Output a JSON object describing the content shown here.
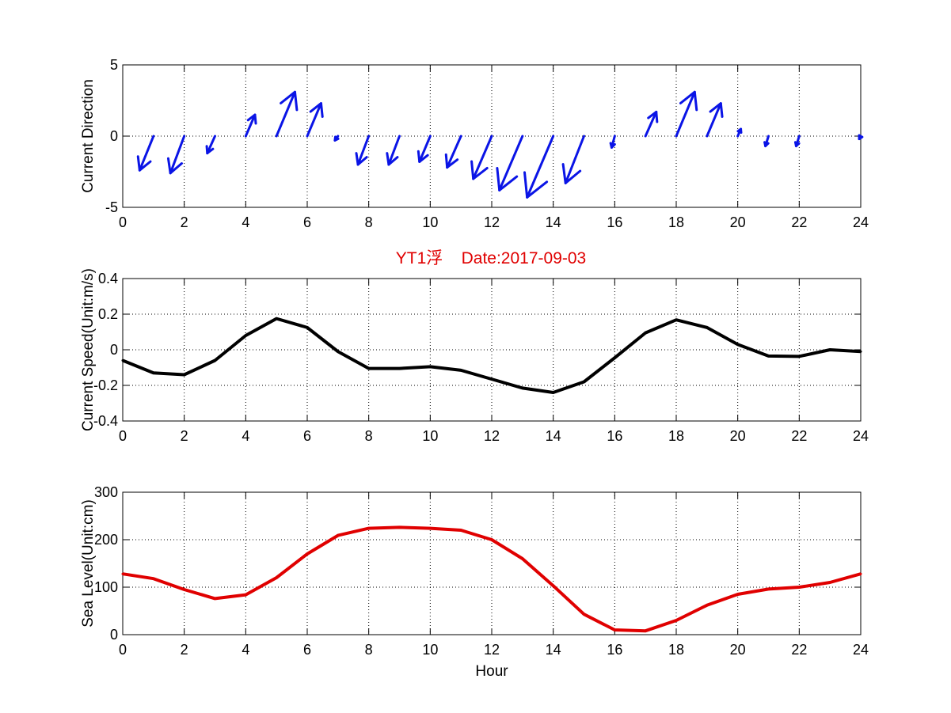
{
  "figure": {
    "title": "YT1浮    Date:2017-09-03",
    "title_color": "#e00000"
  },
  "chart_data": [
    {
      "type": "quiver",
      "ylabel": "Current Direction",
      "xlabel": "",
      "xlim": [
        0,
        24
      ],
      "ylim": [
        -5,
        5
      ],
      "xticks": [
        "0",
        "2",
        "4",
        "6",
        "8",
        "10",
        "12",
        "14",
        "16",
        "18",
        "20",
        "22",
        "24"
      ],
      "yticks": [
        "-5",
        "0",
        "5"
      ],
      "color": "#0a14e6",
      "grid": true,
      "x": [
        1,
        2,
        3,
        4,
        5,
        6,
        7,
        8,
        9,
        10,
        11,
        12,
        13,
        14,
        15,
        16,
        17,
        18,
        19,
        20,
        21,
        22,
        24
      ],
      "u": [
        -0.45,
        -0.45,
        -0.25,
        0.3,
        0.6,
        0.45,
        -0.1,
        -0.35,
        -0.35,
        -0.35,
        -0.45,
        -0.6,
        -0.75,
        -0.85,
        -0.6,
        -0.1,
        0.35,
        0.6,
        0.45,
        0.1,
        -0.1,
        -0.1,
        -0.05
      ],
      "v": [
        -2.4,
        -2.6,
        -1.2,
        1.5,
        3.1,
        2.3,
        -0.3,
        -2.0,
        -2.0,
        -1.8,
        -2.2,
        -3.0,
        -3.8,
        -4.3,
        -3.3,
        -0.8,
        1.7,
        3.1,
        2.3,
        0.5,
        -0.7,
        -0.7,
        -0.2
      ]
    },
    {
      "type": "line",
      "ylabel": "Current Speed(Unit:m/s)",
      "xlabel": "",
      "xlim": [
        0,
        24
      ],
      "ylim": [
        -0.4,
        0.4
      ],
      "xticks": [
        "0",
        "2",
        "4",
        "6",
        "8",
        "10",
        "12",
        "14",
        "16",
        "18",
        "20",
        "22",
        "24"
      ],
      "yticks": [
        "-0.4",
        "-0.2",
        "0",
        "0.2",
        "0.4"
      ],
      "color": "#000000",
      "grid": true,
      "x": [
        0,
        1,
        2,
        3,
        4,
        5,
        6,
        7,
        8,
        9,
        10,
        11,
        12,
        13,
        14,
        15,
        16,
        17,
        18,
        19,
        20,
        21,
        22,
        23,
        24
      ],
      "y": [
        -0.06,
        -0.13,
        -0.14,
        -0.06,
        0.08,
        0.175,
        0.125,
        -0.01,
        -0.105,
        -0.105,
        -0.095,
        -0.115,
        -0.165,
        -0.215,
        -0.24,
        -0.18,
        -0.045,
        0.095,
        0.168,
        0.125,
        0.03,
        -0.035,
        -0.037,
        0.0,
        -0.01
      ]
    },
    {
      "type": "line",
      "ylabel": "Sea Level(Unit:cm)",
      "xlabel": "Hour",
      "xlim": [
        0,
        24
      ],
      "ylim": [
        0,
        300
      ],
      "xticks": [
        "0",
        "2",
        "4",
        "6",
        "8",
        "10",
        "12",
        "14",
        "16",
        "18",
        "20",
        "22",
        "24"
      ],
      "yticks": [
        "0",
        "100",
        "200",
        "300"
      ],
      "color": "#e00000",
      "grid": true,
      "x": [
        0,
        1,
        2,
        3,
        4,
        5,
        6,
        7,
        8,
        9,
        10,
        11,
        12,
        13,
        14,
        15,
        16,
        17,
        18,
        19,
        20,
        21,
        22,
        23,
        24
      ],
      "y": [
        128,
        118,
        95,
        76,
        84,
        120,
        170,
        209,
        224,
        226,
        224,
        220,
        200,
        160,
        103,
        43,
        10,
        8,
        30,
        62,
        85,
        96,
        100,
        110,
        128
      ]
    }
  ]
}
